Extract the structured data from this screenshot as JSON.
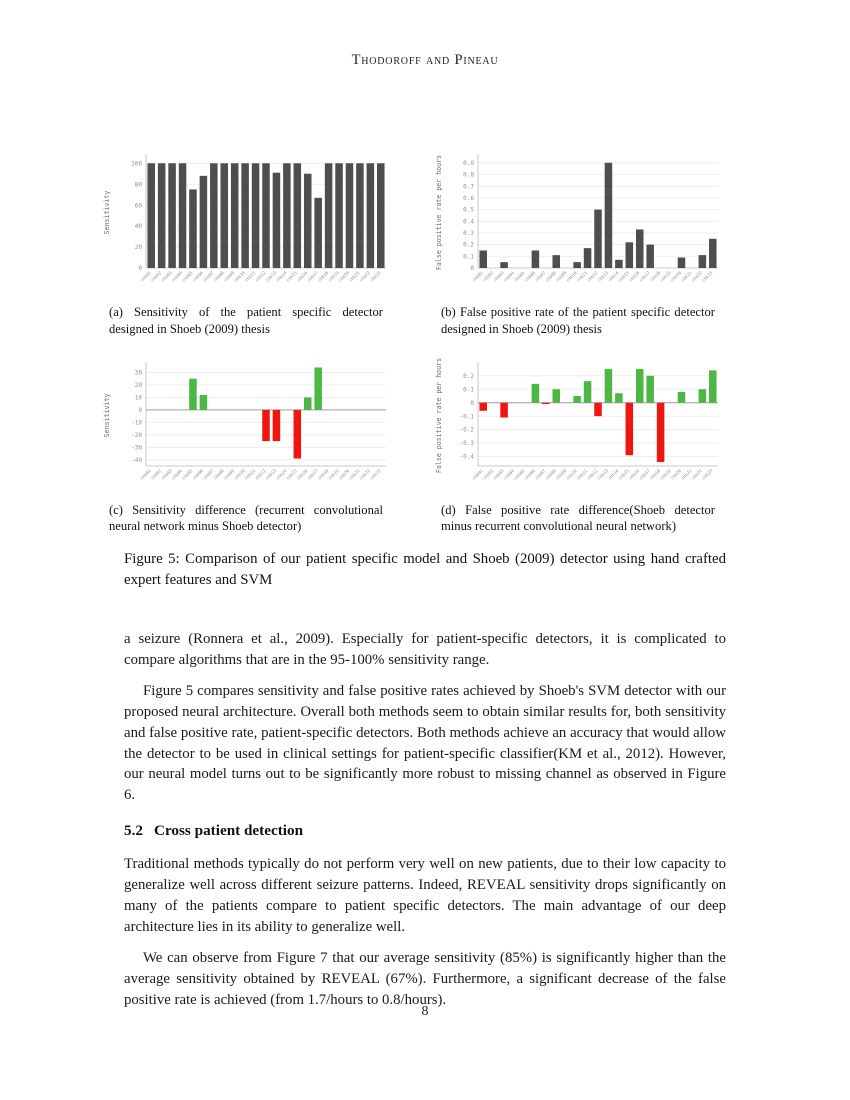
{
  "page": {
    "header": "Thodoroff and Pineau",
    "page_number": "8"
  },
  "figure": {
    "caption_label": "Figure 5:",
    "caption_text": "Comparison of our patient specific model and Shoeb (2009) detector using hand crafted expert features and SVM",
    "subfigures": [
      {
        "label": "(a)",
        "caption": "Sensitivity of the patient specific detector designed in Shoeb (2009) thesis"
      },
      {
        "label": "(b)",
        "caption": "False positive rate of the patient specific detector designed in Shoeb (2009) thesis"
      },
      {
        "label": "(c)",
        "caption": "Sensitivity difference (recurrent convolutional neural network minus Shoeb detector)"
      },
      {
        "label": "(d)",
        "caption": "False positive rate difference(Shoeb detector minus recurrent convolutional neural network)"
      }
    ]
  },
  "body": {
    "paragraphs": [
      "a seizure (Ronnera et al., 2009). Especially for patient-specific detectors, it is complicated to compare algorithms that are in the 95-100% sensitivity range.",
      "Figure 5 compares sensitivity and false positive rates achieved by Shoeb's SVM detector with our proposed neural architecture. Overall both methods seem to obtain similar results for, both sensitivity and false positive rate, patient-specific detectors. Both methods achieve an accuracy that would allow the detector to be used in clinical settings for patient-specific classifier(KM et al., 2012). However, our neural model turns out to be significantly more robust to missing channel as observed in Figure 6.",
      "Traditional methods typically do not perform very well on new patients, due to their low capacity to generalize well across different seizure patterns. Indeed, REVEAL sensitivity drops significantly on many of the patients compare to patient specific detectors. The main advantage of our deep architecture lies in its ability to generalize well.",
      "We can observe from Figure 7 that our average sensitivity (85%) is significantly higher than the average sensitivity obtained by REVEAL (67%). Furthermore, a significant decrease of the false positive rate is achieved (from 1.7/hours to 0.8/hours)."
    ],
    "section": {
      "number": "5.2",
      "title": "Cross patient detection"
    }
  },
  "colors": {
    "bar_gray": "#4e4e4e",
    "positive_green": "#4cb743",
    "negative_red": "#ef1510",
    "grid": "#ebebeb",
    "spine": "#c8c8c8",
    "zero_line": "#a0a0a0",
    "tick_text": "#8f8f8f",
    "axis_label_text": "#6e6e6e"
  },
  "chart_data": [
    {
      "type": "bar",
      "title": "",
      "xlabel": "",
      "ylabel": "Sensitivity",
      "categories": [
        "chb01",
        "chb02",
        "chb03",
        "chb04",
        "chb05",
        "chb06",
        "chb07",
        "chb08",
        "chb09",
        "chb10",
        "chb11",
        "chb12",
        "chb13",
        "chb14",
        "chb15",
        "chb16",
        "chb17",
        "chb18",
        "chb19",
        "chb20",
        "chb21",
        "chb22",
        "chb23"
      ],
      "values": [
        100,
        100,
        100,
        100,
        75,
        88,
        100,
        100,
        100,
        100,
        100,
        100,
        91,
        100,
        100,
        90,
        67,
        100,
        100,
        100,
        100,
        100,
        100
      ],
      "ylim": [
        0,
        106
      ],
      "ytick_values": [
        0,
        20,
        40,
        60,
        80,
        100
      ],
      "ytick_labels": [
        "0",
        "20",
        "40",
        "60",
        "80",
        "100"
      ],
      "grid": true,
      "legend": "none",
      "bar_color": "#4e4e4e",
      "diverging": false,
      "zero_line": false
    },
    {
      "type": "bar",
      "title": "",
      "xlabel": "",
      "ylabel": "False positive rate per hours",
      "categories": [
        "chb01",
        "chb02",
        "chb03",
        "chb04",
        "chb05",
        "chb06",
        "chb07",
        "chb08",
        "chb09",
        "chb10",
        "chb11",
        "chb12",
        "chb13",
        "chb14",
        "chb15",
        "chb16",
        "chb17",
        "chb18",
        "chb19",
        "chb20",
        "chb21",
        "chb22",
        "chb23"
      ],
      "values": [
        0.15,
        0,
        0.05,
        0,
        0,
        0.15,
        0,
        0.11,
        0,
        0.05,
        0.17,
        0.5,
        0.9,
        0.07,
        0.22,
        0.33,
        0.2,
        0,
        0,
        0.09,
        0,
        0.11,
        0.25
      ],
      "ylim": [
        0,
        0.95
      ],
      "ytick_values": [
        0,
        0.1,
        0.2,
        0.3,
        0.4,
        0.5,
        0.6,
        0.7,
        0.8,
        0.9
      ],
      "ytick_labels": [
        "0",
        "0.1",
        "0.2",
        "0.3",
        "0.4",
        "0.5",
        "0.6",
        "0.7",
        "0.8",
        "0.9"
      ],
      "grid": true,
      "legend": "none",
      "bar_color": "#4e4e4e",
      "diverging": false,
      "zero_line": false
    },
    {
      "type": "bar",
      "title": "",
      "xlabel": "",
      "ylabel": "Sensitivity",
      "categories": [
        "chb01",
        "chb02",
        "chb03",
        "chb04",
        "chb05",
        "chb06",
        "chb07",
        "chb08",
        "chb09",
        "chb10",
        "chb11",
        "chb12",
        "chb13",
        "chb14",
        "chb15",
        "chb16",
        "chb17",
        "chb18",
        "chb19",
        "chb20",
        "chb21",
        "chb22",
        "chb23"
      ],
      "values": [
        0,
        0,
        0,
        0,
        25,
        12,
        0,
        0,
        0,
        0,
        0,
        -25,
        -25,
        0,
        -39,
        10,
        34,
        0,
        0,
        0,
        0,
        0,
        0
      ],
      "ylim": [
        -45,
        36
      ],
      "ytick_values": [
        30,
        20,
        10,
        0,
        -10,
        -20,
        -30,
        -40
      ],
      "ytick_labels": [
        "30",
        "20",
        "10",
        "0",
        "-10",
        "-20",
        "-30",
        "-40"
      ],
      "grid": true,
      "legend": "none",
      "diverging": true,
      "positive_color": "#4cb743",
      "negative_color": "#ef1510",
      "zero_line": true
    },
    {
      "type": "bar",
      "title": "",
      "xlabel": "",
      "ylabel": "False positive rate per hours",
      "categories": [
        "chb01",
        "chb02",
        "chb03",
        "chb04",
        "chb05",
        "chb06",
        "chb07",
        "chb08",
        "chb09",
        "chb10",
        "chb11",
        "chb12",
        "chb13",
        "chb14",
        "chb15",
        "chb16",
        "chb17",
        "chb18",
        "chb19",
        "chb20",
        "chb21",
        "chb22",
        "chb23"
      ],
      "values": [
        -0.06,
        0,
        -0.11,
        0,
        0,
        0.14,
        -0.01,
        0.1,
        0,
        0.05,
        0.16,
        -0.1,
        0.25,
        0.07,
        -0.39,
        0.25,
        0.2,
        -0.44,
        0,
        0.08,
        0,
        0.1,
        0.24
      ],
      "ylim": [
        -0.47,
        0.28
      ],
      "ytick_values": [
        0.2,
        0.1,
        0,
        -0.1,
        -0.2,
        -0.3,
        -0.4
      ],
      "ytick_labels": [
        "0.2",
        "0.1",
        "0",
        "-0.1",
        "-0.2",
        "-0.3",
        "-0.4"
      ],
      "grid": true,
      "legend": "none",
      "diverging": true,
      "positive_color": "#4cb743",
      "negative_color": "#ef1510",
      "zero_line": true
    }
  ]
}
